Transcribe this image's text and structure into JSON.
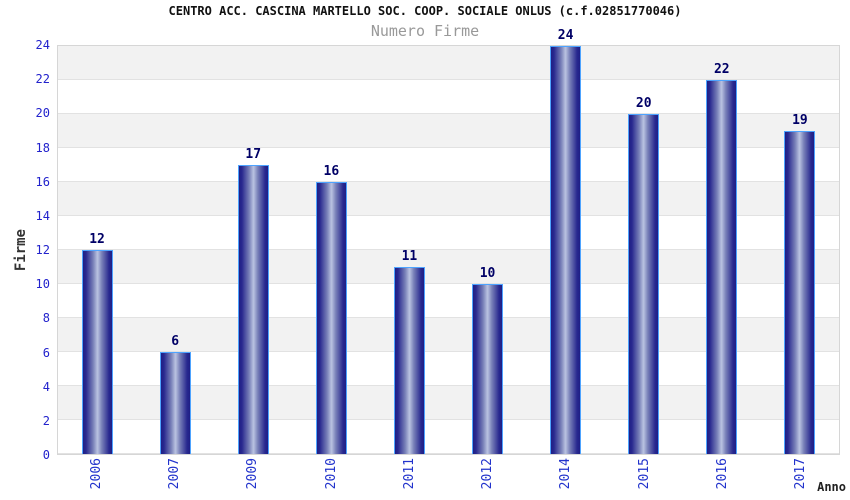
{
  "chart_data": {
    "type": "bar",
    "title": "CENTRO ACC. CASCINA MARTELLO SOC. COOP. SOCIALE ONLUS (c.f.02851770046)",
    "subtitle": "Numero Firme",
    "xlabel": "Anno",
    "ylabel": "Firme",
    "categories": [
      "2006",
      "2007",
      "2009",
      "2010",
      "2011",
      "2012",
      "2014",
      "2015",
      "2016",
      "2017"
    ],
    "values": [
      12,
      6,
      17,
      16,
      11,
      10,
      24,
      20,
      22,
      19
    ],
    "ylim": [
      0,
      24
    ],
    "ytick_step": 2,
    "legend": "none",
    "grid": "horizontal-bands-alternating",
    "colors": {
      "bar_edge_dark": "#1f1f85",
      "bar_center_light": "#bac3e1",
      "bar_outline": "#4da3ff",
      "y_tick_label": "#2222cc",
      "x_tick_label": "#2233cc",
      "value_label": "#000066",
      "band_gray": "#f2f2f2",
      "band_white": "#ffffff",
      "grid_line": "#e2e2e2",
      "plot_border": "#d6d6d6",
      "title_color": "#111111",
      "subtitle_color": "#999999"
    }
  }
}
